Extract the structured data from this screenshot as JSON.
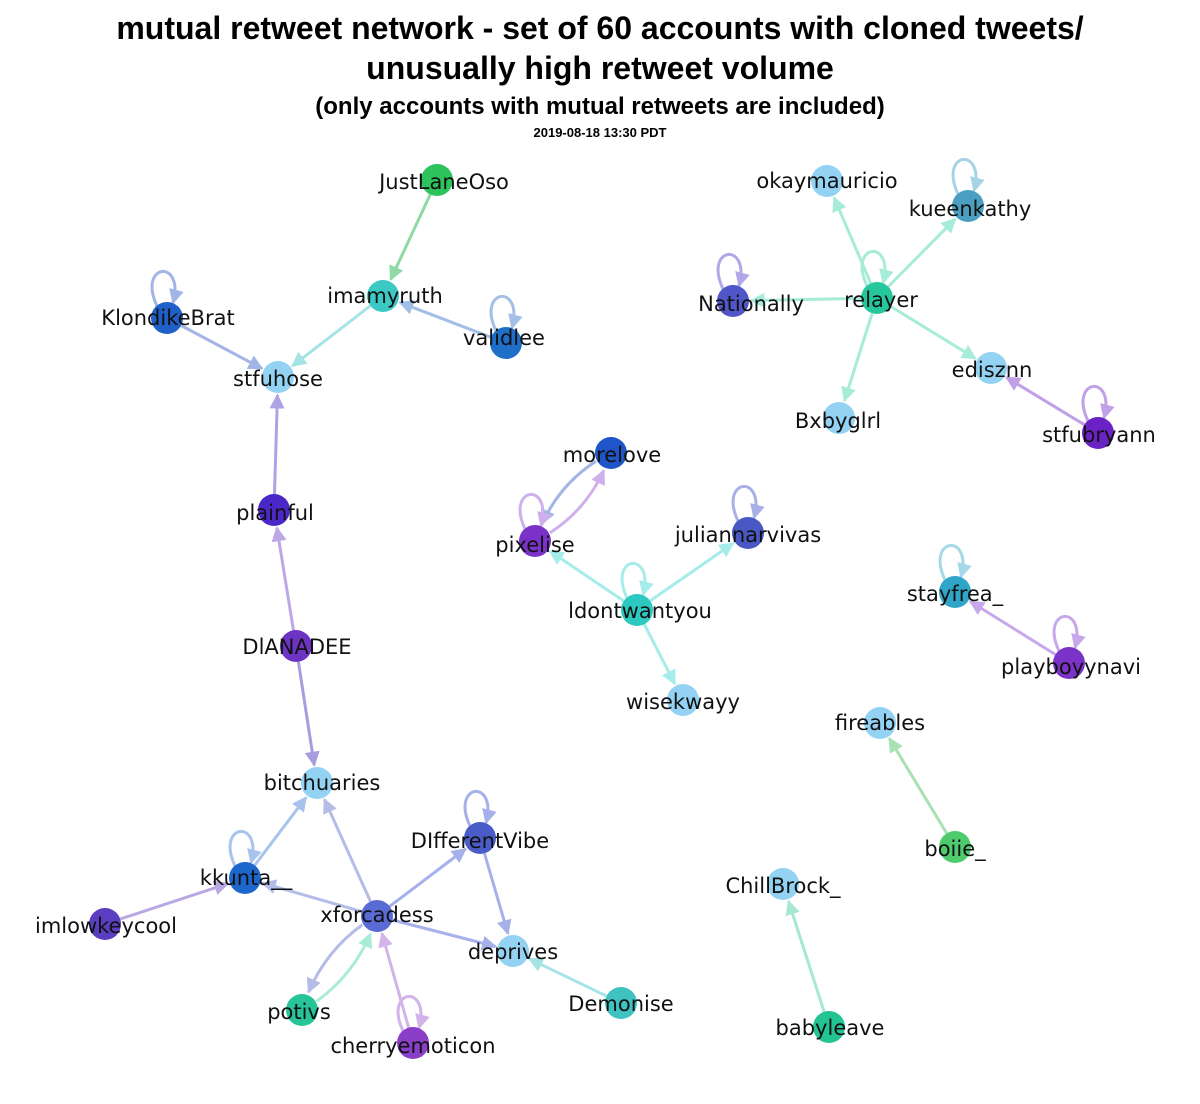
{
  "title_line1": "mutual retweet network - set of 60 accounts with cloned tweets/",
  "title_line2": "unusually high retweet volume",
  "subtitle": "(only accounts with mutual retweets are included)",
  "timestamp": "2019-08-18 13:30 PDT",
  "nodes": [
    {
      "id": "JustLaneOso",
      "label": "JustLaneOso",
      "color": "#2ec25c"
    },
    {
      "id": "imamyruth",
      "label": "imamyruth",
      "color": "#3cc9c4"
    },
    {
      "id": "validlee",
      "label": "validlee",
      "color": "#1f6fc9"
    },
    {
      "id": "KlondikeBrat",
      "label": "KlondikeBrat",
      "color": "#1f5fc8"
    },
    {
      "id": "stfuhose",
      "label": "stfuhose",
      "color": "#93d2f3"
    },
    {
      "id": "plainful",
      "label": "plainful",
      "color": "#4a28c8"
    },
    {
      "id": "DIANADEE",
      "label": "DlANADEE",
      "color": "#6d34c4"
    },
    {
      "id": "bitchuaries",
      "label": "bitchuaries",
      "color": "#93d2f3"
    },
    {
      "id": "kkunta",
      "label": "kkunta__",
      "color": "#1c66cc"
    },
    {
      "id": "imlowkeycool",
      "label": "imlowkeycool",
      "color": "#5a3ec0"
    },
    {
      "id": "xforcadess",
      "label": "xforcadess",
      "color": "#5a6cd4"
    },
    {
      "id": "DIfferentVibe",
      "label": "DIfferentVibe",
      "color": "#4a5cc8"
    },
    {
      "id": "deprives",
      "label": "deprives",
      "color": "#93d2f3"
    },
    {
      "id": "Demonise",
      "label": "Demonise",
      "color": "#3fc2c2"
    },
    {
      "id": "potivs",
      "label": "potivs",
      "color": "#27c49a"
    },
    {
      "id": "cherryemoticon",
      "label": "cherryemoticon",
      "color": "#8b3fc8"
    },
    {
      "id": "okaymauricio",
      "label": "okaymauricio",
      "color": "#93d2f3"
    },
    {
      "id": "kueenkathy",
      "label": "kueenkathy",
      "color": "#4a9ec0"
    },
    {
      "id": "Nationally",
      "label": "Nationally",
      "color": "#5055c8"
    },
    {
      "id": "relayer",
      "label": "relayer",
      "color": "#26c79c"
    },
    {
      "id": "ediszn",
      "label": "edisznn",
      "color": "#93d2f3"
    },
    {
      "id": "stfubryann",
      "label": "stfubryann",
      "color": "#6a22c4"
    },
    {
      "id": "Bxbyglrl",
      "label": "Bxbyglrl",
      "color": "#93d2f3"
    },
    {
      "id": "morelove",
      "label": "morelove",
      "color": "#1f55c8"
    },
    {
      "id": "pixelise",
      "label": "pixelise",
      "color": "#7a32c8"
    },
    {
      "id": "juliannarvivas",
      "label": "juliannarvivas",
      "color": "#4a58c4"
    },
    {
      "id": "Idontwantyou",
      "label": "ldontwantyou",
      "color": "#2cc9c0"
    },
    {
      "id": "wisekwayy",
      "label": "wisekwayy",
      "color": "#93d2f3"
    },
    {
      "id": "stayfrea",
      "label": "stayfrea_",
      "color": "#2fa6c8"
    },
    {
      "id": "playboyynavi",
      "label": "playboyynavi",
      "color": "#7a32c8"
    },
    {
      "id": "fireables",
      "label": "fireables",
      "color": "#93d2f3"
    },
    {
      "id": "boiie",
      "label": "boiie_",
      "color": "#4ecb6c"
    },
    {
      "id": "ChillBrock",
      "label": "ChillBrock_",
      "color": "#93d2f3"
    },
    {
      "id": "babyleave",
      "label": "babyleave",
      "color": "#22c491"
    }
  ],
  "edges": [
    {
      "from": "JustLaneOso",
      "to": "imamyruth",
      "color": "#8fd9a5"
    },
    {
      "from": "imamyruth",
      "to": "stfuhose",
      "color": "#a6e3e6"
    },
    {
      "from": "validlee",
      "to": "imamyruth",
      "color": "#a3bfe6"
    },
    {
      "from": "KlondikeBrat",
      "to": "stfuhose",
      "color": "#a3b5e6"
    },
    {
      "from": "plainful",
      "to": "stfuhose",
      "color": "#aea3e6"
    },
    {
      "from": "DIANADEE",
      "to": "plainful",
      "color": "#bda8e6"
    },
    {
      "from": "DIANADEE",
      "to": "bitchuaries",
      "color": "#a99be0"
    },
    {
      "from": "kkunta",
      "to": "bitchuaries",
      "color": "#a8c4ec"
    },
    {
      "from": "imlowkeycool",
      "to": "kkunta",
      "color": "#b8a8e4"
    },
    {
      "from": "xforcadess",
      "to": "bitchuaries",
      "color": "#b4bce8"
    },
    {
      "from": "xforcadess",
      "to": "kkunta",
      "color": "#b4bce8"
    },
    {
      "from": "xforcadess",
      "to": "DIfferentVibe",
      "color": "#a6b0ea"
    },
    {
      "from": "xforcadess",
      "to": "deprives",
      "color": "#a6b0ea"
    },
    {
      "from": "DIfferentVibe",
      "to": "deprives",
      "color": "#a6b0ea"
    },
    {
      "from": "Demonise",
      "to": "deprives",
      "color": "#a6e3e6"
    },
    {
      "from": "potivs",
      "to": "xforcadess",
      "color": "#a8ecd8"
    },
    {
      "from": "xforcadess",
      "to": "potivs",
      "color": "#b4bce8"
    },
    {
      "from": "cherryemoticon",
      "to": "xforcadess",
      "color": "#d2b3ea"
    },
    {
      "from": "relayer",
      "to": "okaymauricio",
      "color": "#a6ecd8"
    },
    {
      "from": "relayer",
      "to": "kueenkathy",
      "color": "#a6ecd8"
    },
    {
      "from": "relayer",
      "to": "Nationally",
      "color": "#a6ecd8"
    },
    {
      "from": "relayer",
      "to": "ediszn",
      "color": "#a6ecd8"
    },
    {
      "from": "relayer",
      "to": "Bxbyglrl",
      "color": "#a6ecd8"
    },
    {
      "from": "stfubryann",
      "to": "ediszn",
      "color": "#c0a0e6"
    },
    {
      "from": "morelove",
      "to": "pixelise",
      "color": "#a3b5e6"
    },
    {
      "from": "pixelise",
      "to": "morelove",
      "color": "#d0b0ec"
    },
    {
      "from": "Idontwantyou",
      "to": "pixelise",
      "color": "#a6ecea"
    },
    {
      "from": "Idontwantyou",
      "to": "juliannarvivas",
      "color": "#a6ecea"
    },
    {
      "from": "Idontwantyou",
      "to": "wisekwayy",
      "color": "#a6ecea"
    },
    {
      "from": "playboyynavi",
      "to": "stayfrea",
      "color": "#c8a8ea"
    },
    {
      "from": "boiie",
      "to": "fireables",
      "color": "#a8e2b4"
    },
    {
      "from": "babyleave",
      "to": "ChillBrock",
      "color": "#a6e8d4"
    }
  ],
  "self_loops": [
    {
      "node": "KlondikeBrat",
      "color": "#a3b5e6"
    },
    {
      "node": "validlee",
      "color": "#a3bfe6"
    },
    {
      "node": "Nationally",
      "color": "#b0a8e8"
    },
    {
      "node": "relayer",
      "color": "#a6ecd8"
    },
    {
      "node": "kueenkathy",
      "color": "#a6d4e6"
    },
    {
      "node": "stfubryann",
      "color": "#c0a0e6"
    },
    {
      "node": "pixelise",
      "color": "#d0b0ec"
    },
    {
      "node": "Idontwantyou",
      "color": "#a6ecea"
    },
    {
      "node": "juliannarvivas",
      "color": "#a8b0e6"
    },
    {
      "node": "stayfrea",
      "color": "#a6d8e8"
    },
    {
      "node": "playboyynavi",
      "color": "#c8a8ea"
    },
    {
      "node": "kkunta",
      "color": "#a8c4ec"
    },
    {
      "node": "DIfferentVibe",
      "color": "#a6b0ea"
    },
    {
      "node": "cherryemoticon",
      "color": "#d2b3ea"
    }
  ]
}
